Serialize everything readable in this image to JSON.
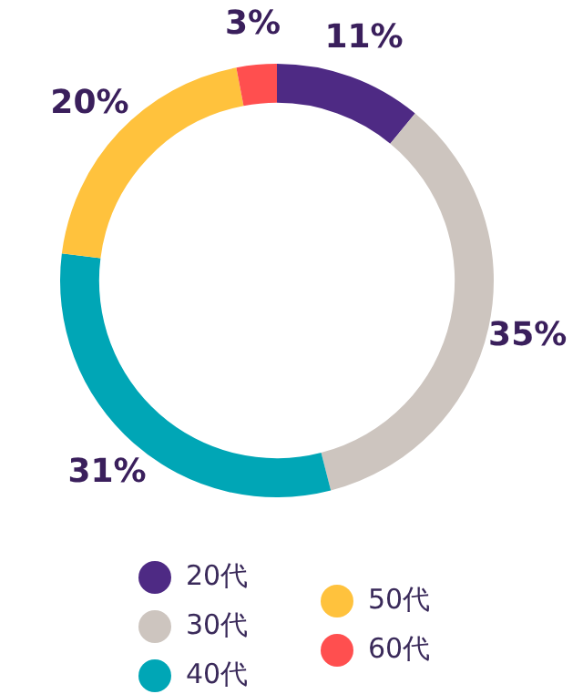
{
  "chart_data": {
    "type": "donut",
    "categories": [
      "20代",
      "30代",
      "40代",
      "50代",
      "60代"
    ],
    "values": [
      11,
      35,
      31,
      20,
      3
    ],
    "colors": [
      "#4e2a84",
      "#cdc5bf",
      "#00a6b6",
      "#ffc23d",
      "#ff4f4f"
    ],
    "value_labels": [
      "11%",
      "35%",
      "31%",
      "20%",
      "3%"
    ],
    "legend": "bottom"
  }
}
